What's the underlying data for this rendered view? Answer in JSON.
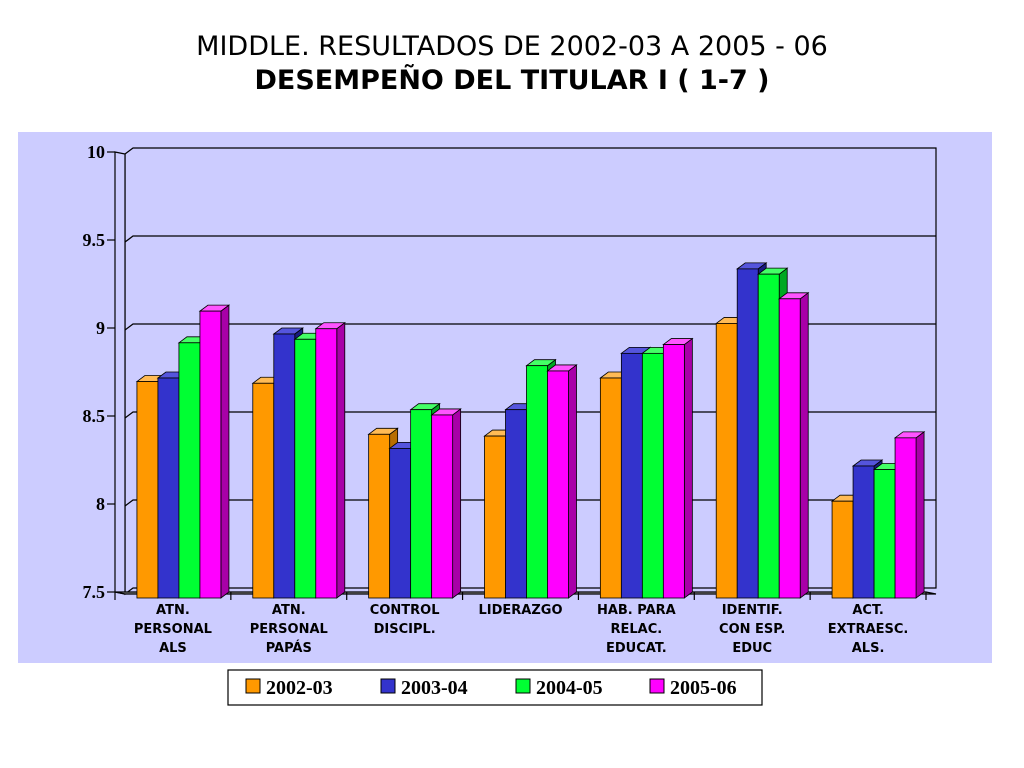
{
  "header": {
    "title_line1": "MIDDLE. RESULTADOS DE 2002-03 A 2005 - 06",
    "title_line2": "DESEMPEÑO DEL TITULAR  I ( 1-7 )"
  },
  "colors": {
    "plot_background": "#ccccff",
    "wall": "#ccccff",
    "grid": "#000000",
    "axis": "#000000",
    "series": [
      "#ff9900",
      "#3333cc",
      "#00ff33",
      "#ff00ff"
    ],
    "series_side": [
      "#b86e00",
      "#1a1a80",
      "#00a822",
      "#a800a8"
    ],
    "series_top": [
      "#ffbb55",
      "#5555dd",
      "#44ff66",
      "#ff55ff"
    ]
  },
  "chart_data": {
    "type": "bar",
    "title": "",
    "xlabel": "",
    "ylabel": "",
    "ylim": [
      7.5,
      10
    ],
    "yticks": [
      "10",
      "9.5",
      "9",
      "8.5",
      "8",
      "7.5"
    ],
    "ytick_values": [
      10,
      9.5,
      9,
      8.5,
      8,
      7.5
    ],
    "grid": true,
    "legend_position": "bottom",
    "categories": [
      [
        "ATN.",
        "PERSONAL",
        "ALS"
      ],
      [
        "ATN.",
        "PERSONAL",
        "PAPÁS"
      ],
      [
        "CONTROL",
        "DISCIPL."
      ],
      [
        "LIDERAZGO"
      ],
      [
        "HAB. PARA",
        "RELAC.",
        "EDUCAT."
      ],
      [
        "IDENTIF.",
        "CON ESP.",
        "EDUC"
      ],
      [
        "ACT.",
        "EXTRAESC.",
        "ALS."
      ]
    ],
    "series": [
      {
        "name": "2002-03",
        "values": [
          8.73,
          8.72,
          8.43,
          8.42,
          8.75,
          9.06,
          8.05
        ]
      },
      {
        "name": "2003-04",
        "values": [
          8.75,
          9.0,
          8.35,
          8.57,
          8.89,
          9.37,
          8.25
        ]
      },
      {
        "name": "2004-05",
        "values": [
          8.95,
          8.97,
          8.57,
          8.82,
          8.89,
          9.34,
          8.23
        ]
      },
      {
        "name": "2005-06",
        "values": [
          9.13,
          9.03,
          8.54,
          8.79,
          8.94,
          9.2,
          8.41
        ]
      }
    ]
  }
}
